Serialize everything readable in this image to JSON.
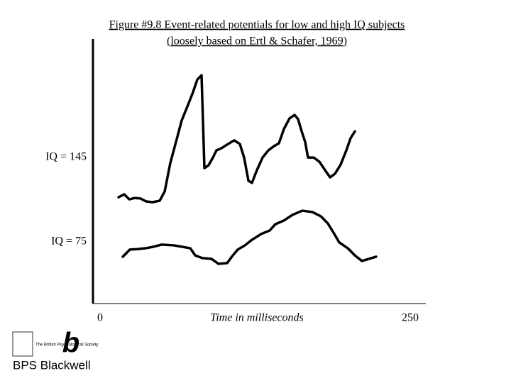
{
  "chart_data": {
    "type": "line",
    "title": [
      "Figure #9.8  Event-related potentials for low and high IQ subjects",
      "(loosely based on Ertl & Schafer, 1969)"
    ],
    "xlabel": "Time in milliseconds",
    "xlim": [
      0,
      250
    ],
    "xticks": [
      0,
      250
    ],
    "ylim": [
      0,
      100
    ],
    "series": [
      {
        "name": "IQ = 145",
        "color": "#000000",
        "x": [
          14.9,
          19.5,
          23.5,
          28.0,
          32.6,
          37.2,
          42.3,
          48.1,
          52.1,
          56.6,
          61.2,
          65.8,
          70.9,
          74.9,
          78.4,
          81.8,
          84.1,
          87.5,
          91.0,
          93.8,
          97.8,
          102.4,
          108.1,
          112.7,
          116.1,
          119.6,
          122.4,
          126.4,
          131.0,
          135.6,
          140.2,
          144.2,
          148.2,
          152.7,
          156.8,
          159.6,
          162.5,
          165.3,
          167.6,
          172.2,
          176.8,
          181.4,
          185.4,
          189.4,
          193.9,
          198.5,
          201.9,
          205.4
        ],
        "values": [
          40.2,
          41.3,
          39.4,
          39.9,
          39.7,
          38.6,
          38.3,
          38.9,
          42.4,
          53.1,
          61.1,
          69.2,
          75.1,
          79.9,
          84.7,
          86.3,
          51.2,
          52.3,
          55.2,
          57.9,
          58.7,
          60.1,
          61.7,
          60.3,
          55.2,
          46.4,
          45.6,
          50.4,
          55.2,
          57.9,
          59.5,
          60.6,
          66.0,
          70.0,
          71.3,
          69.7,
          65.1,
          61.1,
          55.2,
          55.2,
          53.6,
          50.4,
          47.7,
          49.1,
          52.5,
          57.9,
          62.5,
          65.1
        ]
      },
      {
        "name": "IQ = 75",
        "color": "#000000",
        "x": [
          18.3,
          24.0,
          30.9,
          36.6,
          42.3,
          49.8,
          59.5,
          66.9,
          72.7,
          76.7,
          82.4,
          89.8,
          95.5,
          102.4,
          107.0,
          111.0,
          116.7,
          122.4,
          129.9,
          136.7,
          141.3,
          148.2,
          155.0,
          163.0,
          171.1,
          177.9,
          183.6,
          188.2,
          192.8,
          199.7,
          205.4,
          211.1,
          222.5
        ],
        "values": [
          17.7,
          20.4,
          20.6,
          20.9,
          21.4,
          22.3,
          22.0,
          21.4,
          20.9,
          18.2,
          17.2,
          16.9,
          15.0,
          15.3,
          18.2,
          20.4,
          22.0,
          24.1,
          26.3,
          27.6,
          30.0,
          31.4,
          33.5,
          35.1,
          34.6,
          33.0,
          30.3,
          26.8,
          23.1,
          20.9,
          18.2,
          16.1,
          17.7
        ]
      }
    ]
  },
  "publisher": {
    "society": "The British Psychological Society",
    "name": "BPS Blackwell"
  }
}
